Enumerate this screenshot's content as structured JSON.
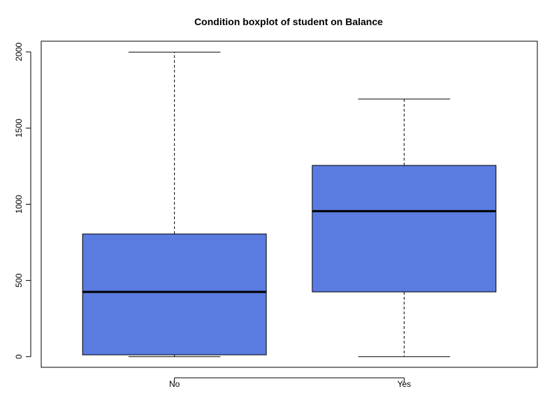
{
  "chart_data": {
    "type": "boxplot",
    "title": "Condition boxplot of  student  on Balance",
    "xlabel": "",
    "ylabel": "",
    "ylim": [
      -70,
      2070
    ],
    "yticks": [
      0,
      500,
      1000,
      1500,
      2000
    ],
    "ytick_labels": [
      "0",
      "500",
      "1000",
      "1500",
      "2000"
    ],
    "categories": [
      "No",
      "Yes"
    ],
    "box_color": "#5A7BE0",
    "series": [
      {
        "category": "No",
        "min": 0,
        "q1": 12,
        "median": 425,
        "q3": 805,
        "max": 1998
      },
      {
        "category": "Yes",
        "min": 0,
        "q1": 425,
        "median": 955,
        "q3": 1255,
        "max": 1690
      }
    ]
  }
}
